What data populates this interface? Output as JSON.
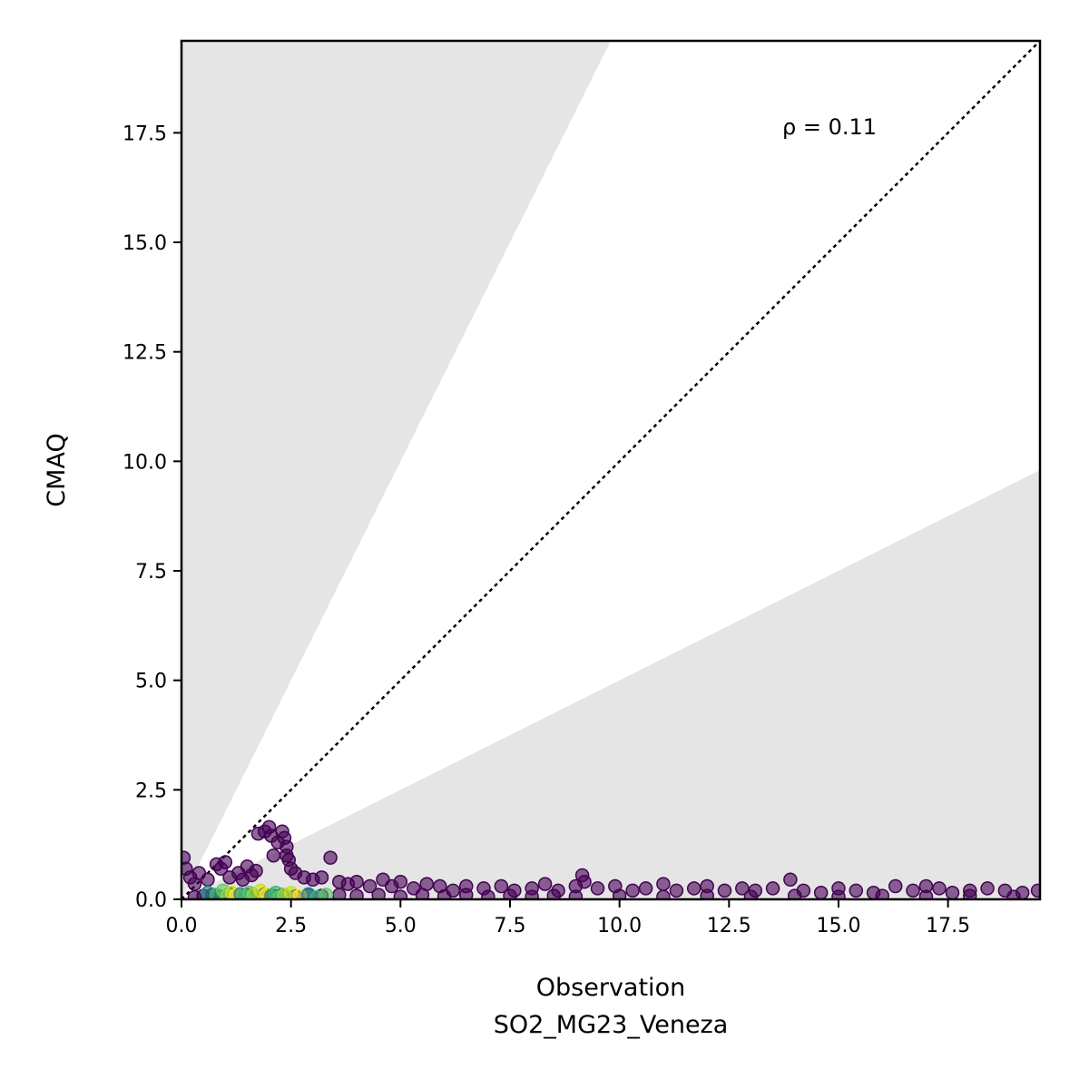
{
  "chart_data": {
    "type": "scatter",
    "title": "",
    "xlabel": "Observation",
    "xlabel_sub": "SO2_MG23_Veneza",
    "ylabel": "CMAQ",
    "xlim": [
      0,
      19.6
    ],
    "ylim": [
      0,
      19.6
    ],
    "xticks": [
      0.0,
      2.5,
      5.0,
      7.5,
      10.0,
      12.5,
      15.0,
      17.5
    ],
    "yticks": [
      0.0,
      2.5,
      5.0,
      7.5,
      10.0,
      12.5,
      15.0,
      17.5
    ],
    "xtick_labels": [
      "0.0",
      "2.5",
      "5.0",
      "7.5",
      "10.0",
      "12.5",
      "15.0",
      "17.5"
    ],
    "ytick_labels": [
      "0.0",
      "2.5",
      "5.0",
      "7.5",
      "10.0",
      "12.5",
      "15.0",
      "17.5"
    ],
    "annotation": "ρ = 0.11",
    "identity_line": true,
    "factor_of_two_band": true,
    "grid": false,
    "colors": {
      "band": "#e5e5e5",
      "identity": "#000000",
      "low_density": "#440154",
      "high_density": "#fde725"
    },
    "points": [
      [
        0.05,
        0.95
      ],
      [
        0.1,
        0.7
      ],
      [
        0.2,
        0.5
      ],
      [
        0.3,
        0.35
      ],
      [
        0.4,
        0.6
      ],
      [
        0.6,
        0.45
      ],
      [
        0.8,
        0.8
      ],
      [
        0.9,
        0.7
      ],
      [
        1.0,
        0.85
      ],
      [
        1.1,
        0.5
      ],
      [
        1.3,
        0.6
      ],
      [
        1.4,
        0.45
      ],
      [
        1.5,
        0.75
      ],
      [
        1.6,
        0.55
      ],
      [
        1.7,
        0.65
      ],
      [
        1.75,
        1.5
      ],
      [
        1.9,
        1.55
      ],
      [
        2.0,
        1.65
      ],
      [
        2.05,
        1.45
      ],
      [
        2.1,
        1.0
      ],
      [
        2.2,
        1.3
      ],
      [
        2.3,
        1.55
      ],
      [
        2.35,
        1.4
      ],
      [
        2.4,
        1.2
      ],
      [
        2.4,
        1.0
      ],
      [
        2.45,
        0.9
      ],
      [
        2.5,
        0.7
      ],
      [
        2.6,
        0.6
      ],
      [
        2.8,
        0.5
      ],
      [
        3.0,
        0.45
      ],
      [
        3.2,
        0.5
      ],
      [
        3.4,
        0.95
      ],
      [
        3.6,
        0.4
      ],
      [
        3.8,
        0.35
      ],
      [
        4.0,
        0.4
      ],
      [
        4.3,
        0.3
      ],
      [
        4.6,
        0.45
      ],
      [
        4.8,
        0.3
      ],
      [
        5.0,
        0.4
      ],
      [
        5.3,
        0.25
      ],
      [
        5.6,
        0.35
      ],
      [
        5.9,
        0.3
      ],
      [
        6.2,
        0.2
      ],
      [
        6.5,
        0.3
      ],
      [
        6.9,
        0.25
      ],
      [
        7.3,
        0.3
      ],
      [
        7.6,
        0.2
      ],
      [
        8.0,
        0.25
      ],
      [
        8.3,
        0.35
      ],
      [
        8.6,
        0.2
      ],
      [
        9.0,
        0.3
      ],
      [
        9.15,
        0.55
      ],
      [
        9.2,
        0.4
      ],
      [
        9.5,
        0.25
      ],
      [
        9.9,
        0.3
      ],
      [
        10.3,
        0.2
      ],
      [
        10.6,
        0.25
      ],
      [
        11.0,
        0.35
      ],
      [
        11.3,
        0.2
      ],
      [
        11.7,
        0.25
      ],
      [
        12.0,
        0.3
      ],
      [
        12.4,
        0.2
      ],
      [
        12.8,
        0.25
      ],
      [
        13.1,
        0.2
      ],
      [
        13.5,
        0.25
      ],
      [
        13.9,
        0.45
      ],
      [
        14.2,
        0.2
      ],
      [
        14.6,
        0.15
      ],
      [
        15.0,
        0.25
      ],
      [
        15.4,
        0.2
      ],
      [
        15.8,
        0.15
      ],
      [
        16.3,
        0.3
      ],
      [
        16.7,
        0.2
      ],
      [
        17.0,
        0.3
      ],
      [
        17.3,
        0.25
      ],
      [
        17.6,
        0.15
      ],
      [
        18.0,
        0.2
      ],
      [
        18.4,
        0.25
      ],
      [
        18.8,
        0.2
      ],
      [
        19.2,
        0.15
      ],
      [
        19.55,
        0.2
      ],
      [
        0.3,
        0.05
      ],
      [
        0.5,
        0.08
      ],
      [
        0.7,
        0.1
      ],
      [
        0.9,
        0.06
      ],
      [
        1.1,
        0.12
      ],
      [
        1.3,
        0.08
      ],
      [
        1.5,
        0.1
      ],
      [
        1.7,
        0.06
      ],
      [
        1.9,
        0.12
      ],
      [
        2.1,
        0.08
      ],
      [
        2.3,
        0.1
      ],
      [
        2.6,
        0.07
      ],
      [
        2.9,
        0.1
      ],
      [
        3.2,
        0.08
      ],
      [
        3.6,
        0.1
      ],
      [
        4.0,
        0.08
      ],
      [
        4.5,
        0.1
      ],
      [
        5.0,
        0.06
      ],
      [
        5.5,
        0.1
      ],
      [
        6.0,
        0.07
      ],
      [
        6.5,
        0.1
      ],
      [
        7.0,
        0.06
      ],
      [
        7.5,
        0.08
      ],
      [
        8.0,
        0.06
      ],
      [
        8.5,
        0.08
      ],
      [
        9.0,
        0.06
      ],
      [
        10.0,
        0.08
      ],
      [
        11.0,
        0.06
      ],
      [
        12.0,
        0.08
      ],
      [
        13.0,
        0.06
      ],
      [
        14.0,
        0.08
      ],
      [
        15.0,
        0.06
      ],
      [
        16.0,
        0.08
      ],
      [
        17.0,
        0.06
      ],
      [
        18.0,
        0.08
      ],
      [
        19.0,
        0.06
      ]
    ],
    "dense_points": [
      [
        0.6,
        0.15
      ],
      [
        0.8,
        0.1
      ],
      [
        0.95,
        0.2
      ],
      [
        1.05,
        0.08
      ],
      [
        1.15,
        0.15
      ],
      [
        1.25,
        0.1
      ],
      [
        1.35,
        0.12
      ],
      [
        1.45,
        0.05
      ],
      [
        1.55,
        0.15
      ],
      [
        1.65,
        0.1
      ],
      [
        1.8,
        0.2
      ],
      [
        1.95,
        0.12
      ],
      [
        2.05,
        0.08
      ],
      [
        2.15,
        0.15
      ],
      [
        2.25,
        0.05
      ],
      [
        2.35,
        0.1
      ],
      [
        2.5,
        0.15
      ],
      [
        2.7,
        0.08
      ],
      [
        2.9,
        0.12
      ],
      [
        3.1,
        0.05
      ],
      [
        3.3,
        0.1
      ]
    ]
  }
}
